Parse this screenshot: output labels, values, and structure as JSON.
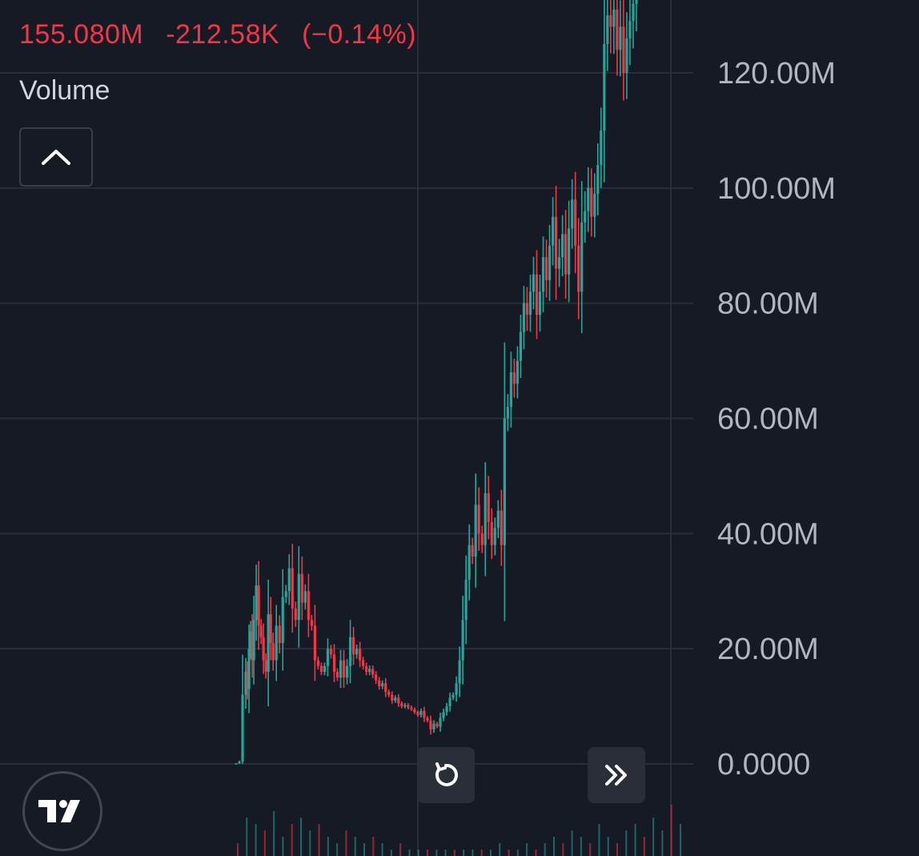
{
  "header": {
    "last_value": "155.080M",
    "change_abs": "-212.58K",
    "change_pct": "(−0.14%)",
    "change_color": "#f23645"
  },
  "pane": {
    "label": "Volume",
    "collapse_icon": "chevron-up-icon"
  },
  "controls": {
    "logo_icon": "tradingview-logo-icon",
    "reset_icon": "reset-rotate-icon",
    "scroll_icon": "double-chevron-right-icon"
  },
  "colors": {
    "background": "#161a25",
    "up": "#26a69a",
    "down": "#f23645",
    "grid": "#2a2e39",
    "axis_text": "#b2b5be"
  },
  "chart_data": {
    "type": "line",
    "ylabel": "",
    "ylim": [
      0,
      130000000
    ],
    "yticks": [
      "0.0000",
      "20.00M",
      "40.00M",
      "60.00M",
      "80.00M",
      "100.00M",
      "120.00M"
    ],
    "grid": true,
    "x": [
      0,
      4,
      8,
      12,
      14,
      16,
      18,
      20,
      22,
      25,
      28,
      31,
      34,
      37,
      40,
      43,
      46,
      50,
      54,
      58,
      62,
      66,
      70,
      74,
      78,
      82,
      86,
      90,
      94,
      98,
      102,
      106,
      110,
      114,
      118,
      122,
      126,
      130,
      134,
      138,
      142,
      146,
      150,
      154,
      158,
      162,
      166,
      170,
      174,
      178,
      182,
      186,
      190,
      194,
      198,
      202,
      206,
      210,
      214,
      218,
      222,
      226,
      230,
      234,
      238,
      242,
      246,
      250,
      254,
      258,
      262,
      266,
      270,
      274,
      278,
      282,
      286,
      290,
      294,
      298,
      302,
      306,
      310,
      314,
      318,
      322,
      326,
      330,
      334,
      338,
      342,
      346,
      350,
      354,
      358,
      362,
      366,
      370,
      374,
      378,
      382,
      386,
      390,
      394,
      398,
      402,
      406,
      410,
      414,
      418,
      422,
      426,
      430,
      434,
      438,
      442,
      446,
      450,
      454,
      458,
      462,
      466,
      470,
      474,
      478,
      482,
      486,
      490,
      494,
      498
    ],
    "series": [
      {
        "values": [
          100000,
          400000,
          12000000,
          16000000,
          13000000,
          20000000,
          23000000,
          18000000,
          25000000,
          31000000,
          24000000,
          22000000,
          18000000,
          16000000,
          26000000,
          21000000,
          18000000,
          24000000,
          21000000,
          29000000,
          30000000,
          34000000,
          27000000,
          25000000,
          33000000,
          28000000,
          30000000,
          25000000,
          24000000,
          18000000,
          17000000,
          16000000,
          17000000,
          20000000,
          19000000,
          16000000,
          15000000,
          18000000,
          15000000,
          17000000,
          22000000,
          19000000,
          20000000,
          18000000,
          17000000,
          16000000,
          16500000,
          15500000,
          14500000,
          13500000,
          14000000,
          12500000,
          12000000,
          11000000,
          11500000,
          10500000,
          10000000,
          10200000,
          9800000,
          9500000,
          9000000,
          8500000,
          9200000,
          8000000,
          7500000,
          6000000,
          7000000,
          6500000,
          8000000,
          9000000,
          10000000,
          11500000,
          12000000,
          14000000,
          18000000,
          25000000,
          32000000,
          38000000,
          36000000,
          45000000,
          40000000,
          38000000,
          47000000,
          42000000,
          38000000,
          41000000,
          44000000,
          38000000,
          60000000,
          62000000,
          68000000,
          66000000,
          70000000,
          75000000,
          80000000,
          78000000,
          82000000,
          85000000,
          78000000,
          82000000,
          88000000,
          84000000,
          90000000,
          95000000,
          86000000,
          88000000,
          92000000,
          85000000,
          93000000,
          98000000,
          90000000,
          82000000,
          94000000,
          96000000,
          100000000,
          95000000,
          99000000,
          104000000,
          110000000,
          125000000,
          130000000,
          128000000,
          131000000,
          124000000,
          128000000,
          120000000,
          126000000,
          129000000,
          132000000,
          133000000
        ]
      }
    ],
    "volume_bars": [
      2,
      6,
      5,
      4,
      7,
      3,
      5,
      6,
      4,
      5,
      3,
      2,
      4,
      3,
      2,
      3,
      2,
      1,
      2,
      1,
      1,
      1,
      1,
      1,
      1,
      1,
      1,
      1,
      1,
      2,
      1,
      1,
      2,
      1,
      2,
      3,
      2,
      4,
      3,
      2,
      5,
      3,
      2,
      4,
      5,
      3,
      6,
      4,
      8,
      5
    ]
  }
}
